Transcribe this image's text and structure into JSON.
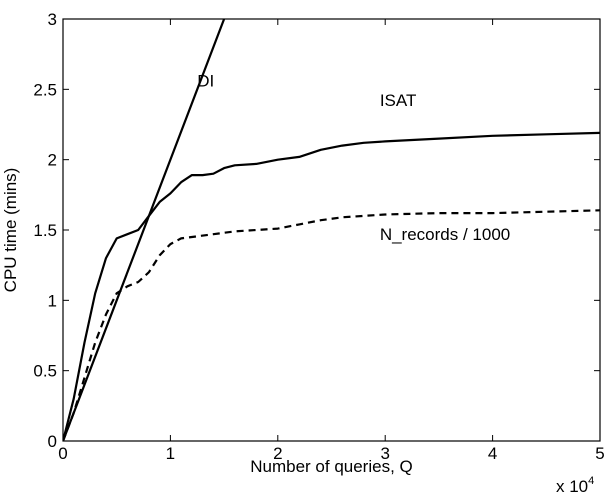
{
  "chart_data": {
    "type": "line",
    "xlabel": "Number of queries, Q",
    "ylabel": "CPU time (mins)",
    "x_multiplier": {
      "base": "x 10",
      "exponent": "4"
    },
    "xlim": [
      0,
      5
    ],
    "ylim": [
      0,
      3
    ],
    "x_ticks": [
      0,
      1,
      2,
      3,
      4,
      5
    ],
    "y_ticks": [
      0,
      0.5,
      1,
      1.5,
      2,
      2.5,
      3
    ],
    "x_tick_labels": [
      "0",
      "1",
      "2",
      "3",
      "4",
      "5"
    ],
    "y_tick_labels": [
      "0",
      "0.5",
      "1",
      "1.5",
      "2",
      "2.5",
      "3"
    ],
    "grid": false,
    "legend": "none",
    "series": [
      {
        "name": "DI",
        "style": "solid",
        "x": [
          0,
          1.5
        ],
        "y": [
          0,
          3
        ]
      },
      {
        "name": "ISAT",
        "style": "solid",
        "x": [
          0,
          0.1,
          0.2,
          0.3,
          0.4,
          0.5,
          0.6,
          0.7,
          0.8,
          0.9,
          1.0,
          1.1,
          1.2,
          1.3,
          1.4,
          1.5,
          1.6,
          1.8,
          2.0,
          2.2,
          2.4,
          2.6,
          2.8,
          3.0,
          3.5,
          4.0,
          4.5,
          5.0
        ],
        "y": [
          0,
          0.3,
          0.7,
          1.05,
          1.3,
          1.44,
          1.47,
          1.5,
          1.6,
          1.7,
          1.76,
          1.84,
          1.89,
          1.89,
          1.9,
          1.94,
          1.96,
          1.97,
          2.0,
          2.02,
          2.07,
          2.1,
          2.12,
          2.13,
          2.15,
          2.17,
          2.18,
          2.19
        ]
      },
      {
        "name": "N_records / 1000",
        "style": "dashed",
        "x": [
          0,
          0.1,
          0.2,
          0.3,
          0.4,
          0.5,
          0.6,
          0.7,
          0.8,
          0.9,
          1.0,
          1.1,
          1.2,
          1.4,
          1.6,
          1.8,
          2.0,
          2.2,
          2.4,
          2.6,
          2.8,
          3.0,
          3.5,
          4.0,
          4.5,
          5.0
        ],
        "y": [
          0,
          0.2,
          0.45,
          0.7,
          0.9,
          1.05,
          1.1,
          1.13,
          1.2,
          1.32,
          1.4,
          1.44,
          1.45,
          1.47,
          1.49,
          1.5,
          1.51,
          1.54,
          1.57,
          1.59,
          1.6,
          1.61,
          1.62,
          1.62,
          1.63,
          1.64
        ]
      }
    ],
    "annotations": [
      "DI",
      "ISAT",
      "N_records / 1000"
    ]
  }
}
